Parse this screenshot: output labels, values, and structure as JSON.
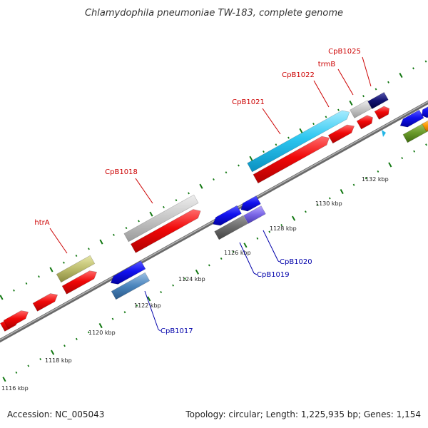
{
  "header": {
    "title": "Chlamydophila pneumoniae TW-183, complete genome"
  },
  "footer": {
    "accession": "Accession: NC_005043",
    "topology": "Topology: circular; Length: 1,225,935 bp; Genes: 1,154"
  },
  "colors": {
    "backbone": "#888888",
    "tick": "#117711",
    "label_top": "#cc0000",
    "label_bottom": "#0000aa"
  },
  "scale": {
    "labels": [
      "1116 kbp",
      "1118 kbp",
      "1120 kbp",
      "1122 kbp",
      "1124 kbp",
      "1126 kbp",
      "1128 kbp",
      "1130 kbp",
      "1132 kbp"
    ]
  },
  "genes": {
    "top_labels": [
      "htrA",
      "CpB1018",
      "CpB1021",
      "CpB1022",
      "trmB",
      "CpB1025"
    ],
    "bottom_labels": [
      "CpB1017",
      "CpB1019",
      "CpB1020"
    ]
  }
}
